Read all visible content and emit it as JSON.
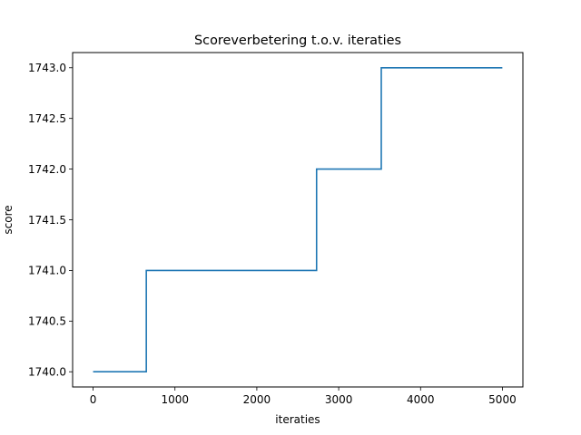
{
  "chart_data": {
    "type": "line",
    "title": "Scoreverbetering t.o.v. iteraties",
    "xlabel": "iteraties",
    "ylabel": "score",
    "xlim": [
      -250,
      5250
    ],
    "ylim": [
      1739.85,
      1743.15
    ],
    "xticks": [
      0,
      1000,
      2000,
      3000,
      4000,
      5000
    ],
    "xtick_labels": [
      "0",
      "1000",
      "2000",
      "3000",
      "4000",
      "5000"
    ],
    "yticks": [
      1740.0,
      1740.5,
      1741.0,
      1741.5,
      1742.0,
      1742.5,
      1743.0
    ],
    "ytick_labels": [
      "1740.0",
      "1740.5",
      "1741.0",
      "1741.5",
      "1742.0",
      "1742.5",
      "1743.0"
    ],
    "grid": false,
    "series": [
      {
        "color": "#1f77b4",
        "x": [
          0,
          650,
          650,
          2730,
          2730,
          3520,
          3520,
          4999
        ],
        "y": [
          1740,
          1740,
          1741,
          1741,
          1742,
          1742,
          1743,
          1743
        ]
      }
    ]
  }
}
